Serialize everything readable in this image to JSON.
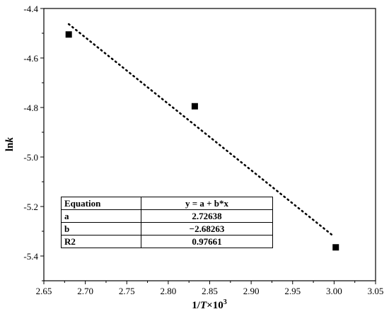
{
  "chart_data": {
    "type": "scatter",
    "xlabel_prefix": "1/",
    "xlabel_var": "T",
    "xlabel_suffix": "×10",
    "xlabel_sup": "3",
    "ylabel_prefix": "ln",
    "ylabel_var": "k",
    "xlim": [
      2.65,
      3.05
    ],
    "ylim": [
      -5.5,
      -4.4
    ],
    "x_ticks": [
      "2.65",
      "2.70",
      "2.75",
      "2.80",
      "2.85",
      "2.90",
      "2.95",
      "3.00",
      "3.05"
    ],
    "y_ticks": [
      "-5.4",
      "-5.2",
      "-5.0",
      "-4.8",
      "-4.6",
      "-4.4"
    ],
    "points": [
      {
        "x": 2.68,
        "y": -4.505
      },
      {
        "x": 2.832,
        "y": -4.795
      },
      {
        "x": 3.002,
        "y": -5.365
      }
    ],
    "fit": {
      "a": 2.72638,
      "b": -2.68263,
      "x_start": 2.68,
      "x_end": 2.998
    },
    "grid": false,
    "fit_table": {
      "rows": [
        [
          "Equation",
          "y = a + b*x"
        ],
        [
          "a",
          "2.72638"
        ],
        [
          "b",
          "−2.68263"
        ],
        [
          "R2",
          "0.97661"
        ]
      ]
    }
  }
}
